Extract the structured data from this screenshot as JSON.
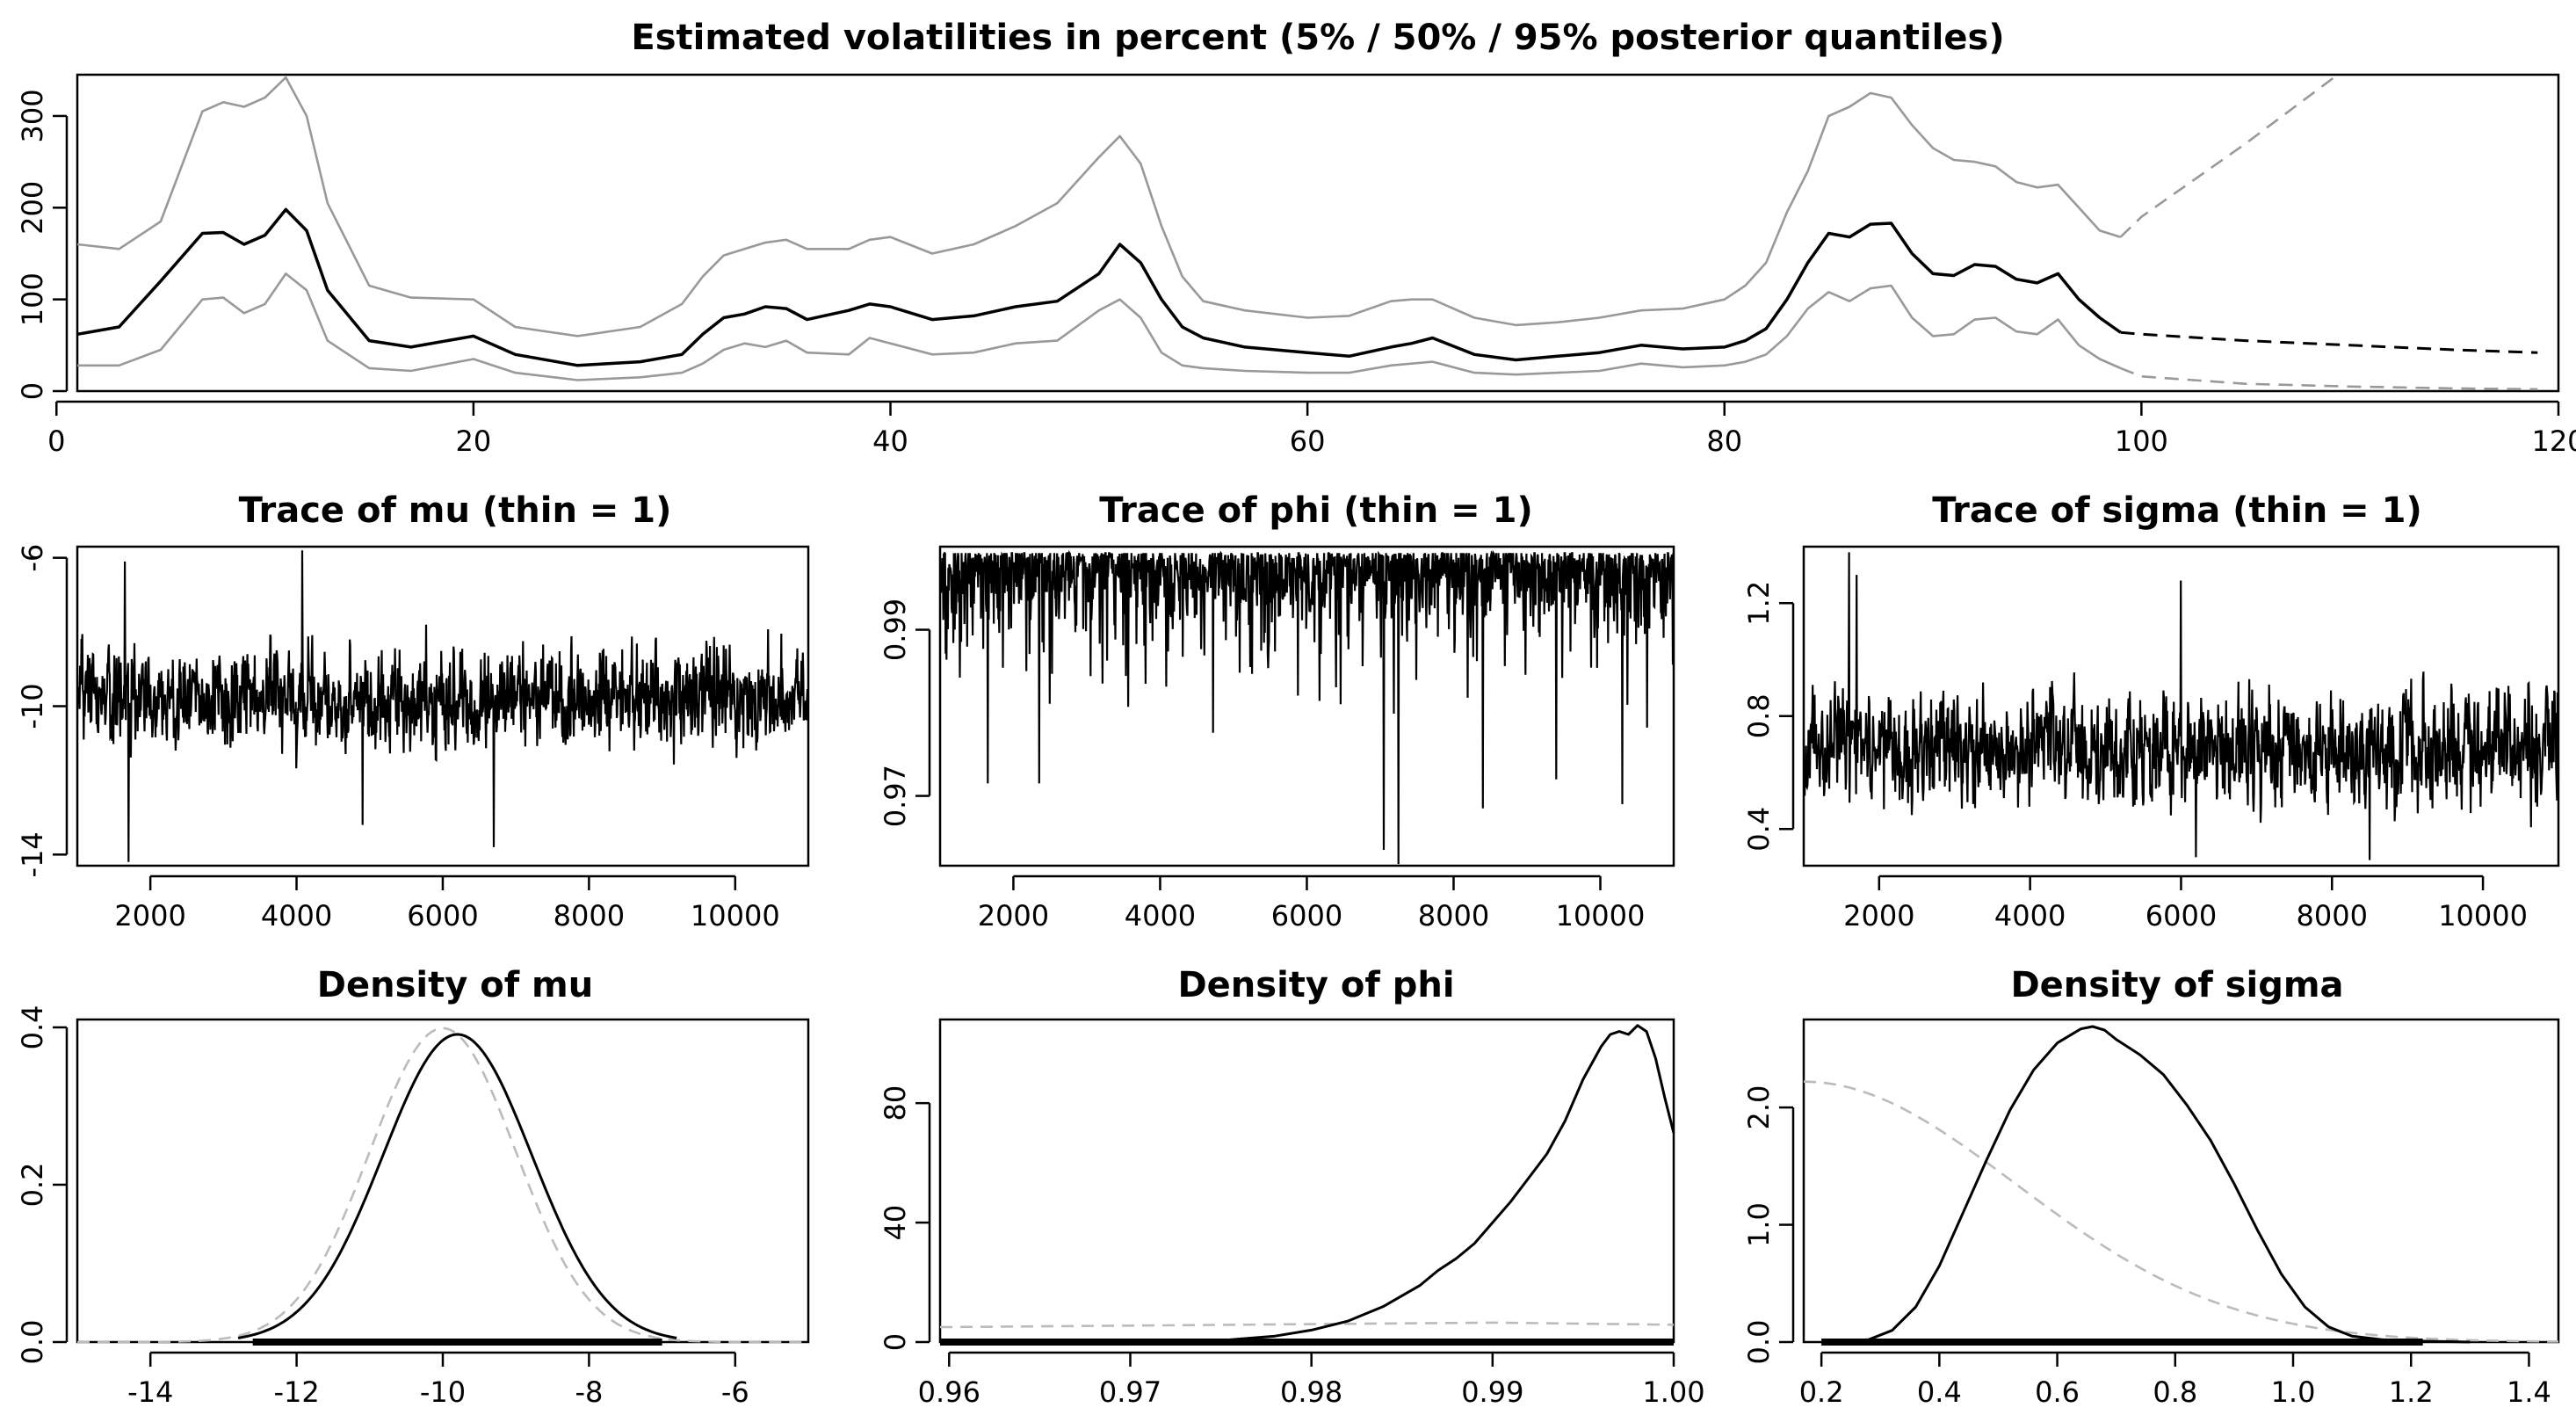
{
  "chart_data": [
    {
      "type": "line",
      "title": "Estimated volatilities in percent (5% / 50% / 95% posterior quantiles)",
      "xlabel": "",
      "ylabel": "",
      "xlim": [
        1,
        120
      ],
      "ylim": [
        0,
        345
      ],
      "xticks": [
        "0",
        "20",
        "40",
        "60",
        "80",
        "100",
        "120"
      ],
      "yticks": [
        "0",
        "100",
        "200",
        "300"
      ],
      "grid": false,
      "x": [
        1,
        3,
        5,
        7,
        8,
        9,
        10,
        11,
        12,
        13,
        15,
        17,
        20,
        22,
        25,
        28,
        30,
        31,
        32,
        33,
        34,
        35,
        36,
        38,
        39,
        40,
        42,
        44,
        46,
        48,
        50,
        51,
        52,
        53,
        54,
        55,
        57,
        60,
        62,
        64,
        65,
        66,
        68,
        70,
        72,
        74,
        76,
        78,
        80,
        81,
        82,
        83,
        84,
        85,
        86,
        87,
        88,
        89,
        90,
        91,
        92,
        93,
        94,
        95,
        96,
        97,
        98,
        99
      ],
      "series": [
        {
          "role": "median",
          "color": "#000000",
          "values": [
            62,
            70,
            120,
            172,
            173,
            160,
            170,
            198,
            175,
            110,
            55,
            48,
            60,
            40,
            28,
            32,
            40,
            62,
            80,
            84,
            92,
            90,
            78,
            88,
            95,
            92,
            78,
            82,
            92,
            98,
            128,
            160,
            140,
            100,
            70,
            58,
            48,
            42,
            38,
            48,
            52,
            58,
            40,
            34,
            38,
            42,
            50,
            46,
            48,
            55,
            68,
            100,
            140,
            172,
            168,
            182,
            183,
            150,
            128,
            126,
            138,
            136,
            122,
            118,
            128,
            100,
            80,
            64
          ]
        },
        {
          "role": "q95",
          "color": "#999999",
          "values": [
            160,
            155,
            185,
            305,
            315,
            310,
            320,
            342,
            300,
            205,
            115,
            102,
            100,
            70,
            60,
            70,
            95,
            125,
            148,
            155,
            162,
            165,
            155,
            155,
            165,
            168,
            150,
            160,
            180,
            205,
            255,
            278,
            248,
            180,
            125,
            98,
            88,
            80,
            82,
            98,
            100,
            100,
            80,
            72,
            75,
            80,
            88,
            90,
            100,
            115,
            140,
            195,
            240,
            300,
            310,
            325,
            320,
            290,
            265,
            252,
            250,
            245,
            228,
            222,
            225,
            200,
            175,
            168
          ]
        },
        {
          "role": "q5",
          "color": "#999999",
          "values": [
            28,
            28,
            45,
            100,
            102,
            85,
            95,
            128,
            110,
            55,
            25,
            22,
            35,
            20,
            12,
            15,
            20,
            30,
            45,
            52,
            48,
            55,
            42,
            40,
            58,
            52,
            40,
            42,
            52,
            55,
            88,
            100,
            80,
            42,
            28,
            25,
            22,
            20,
            20,
            28,
            30,
            32,
            20,
            18,
            20,
            22,
            30,
            26,
            28,
            32,
            40,
            60,
            90,
            108,
            98,
            112,
            115,
            80,
            60,
            62,
            78,
            80,
            65,
            62,
            78,
            50,
            35,
            25
          ]
        }
      ],
      "forecast": {
        "x": [
          99,
          100,
          105,
          110,
          115,
          119
        ],
        "median": [
          64,
          62,
          55,
          50,
          45,
          42
        ],
        "q95": [
          168,
          190,
          270,
          355,
          440,
          510
        ],
        "q5": [
          25,
          16,
          8,
          5,
          3,
          2
        ]
      }
    },
    {
      "type": "line",
      "title": "Trace of mu (thin = 1)",
      "xlim": [
        1001,
        11000
      ],
      "ylim": [
        -14.3,
        -5.7
      ],
      "xticks": [
        "2000",
        "4000",
        "6000",
        "8000",
        "10000"
      ],
      "yticks": [
        "-14",
        "-10",
        "-6"
      ],
      "n_draws": 10000,
      "center": -9.8,
      "spread": 0.95,
      "spikes": [
        [
          1700,
          -14.2
        ],
        [
          4080,
          -5.8
        ],
        [
          1650,
          -6.1
        ],
        [
          6700,
          -13.8
        ],
        [
          4900,
          -13.2
        ]
      ]
    },
    {
      "type": "line",
      "title": "Trace of phi (thin = 1)",
      "xlim": [
        1001,
        11000
      ],
      "ylim": [
        0.9616,
        1.0
      ],
      "xticks": [
        "2000",
        "4000",
        "6000",
        "8000",
        "10000"
      ],
      "yticks": [
        "0.97",
        "0.99"
      ],
      "n_draws": 10000,
      "center": 0.9955,
      "spread": 0.003,
      "spikes": [
        [
          7250,
          0.9618
        ],
        [
          7050,
          0.9635
        ],
        [
          1650,
          0.9715
        ],
        [
          2350,
          0.9715
        ],
        [
          10300,
          0.969
        ],
        [
          8400,
          0.9685
        ],
        [
          9400,
          0.972
        ]
      ]
    },
    {
      "type": "line",
      "title": "Trace of sigma (thin = 1)",
      "xlim": [
        1001,
        11000
      ],
      "ylim": [
        0.27,
        1.4
      ],
      "xticks": [
        "2000",
        "4000",
        "6000",
        "8000",
        "10000"
      ],
      "yticks": [
        "0.4",
        "0.8",
        "1.2"
      ],
      "n_draws": 10000,
      "center": 0.68,
      "spread": 0.14,
      "spikes": [
        [
          1600,
          1.38
        ],
        [
          1700,
          1.3
        ],
        [
          6000,
          1.28
        ],
        [
          6200,
          0.3
        ],
        [
          8500,
          0.29
        ]
      ]
    },
    {
      "type": "line",
      "title": "Density of mu",
      "xlim": [
        -15,
        -5
      ],
      "ylim": [
        0,
        0.41
      ],
      "xticks": [
        "-14",
        "-12",
        "-10",
        "-8",
        "-6"
      ],
      "yticks": [
        "0.0",
        "0.2",
        "0.4"
      ],
      "posterior": {
        "family": "normal",
        "mean": -9.8,
        "sd": 1.02
      },
      "prior": {
        "family": "normal",
        "mean": -10,
        "sd": 1.0
      },
      "rug": [
        -12.6,
        -7.0
      ]
    },
    {
      "type": "line",
      "title": "Density of phi",
      "xlim": [
        0.9595,
        1.0
      ],
      "ylim": [
        0,
        108
      ],
      "xticks": [
        "0.96",
        "0.97",
        "0.98",
        "0.99",
        "1.00"
      ],
      "yticks": [
        "0",
        "40",
        "80"
      ],
      "posterior": {
        "x": [
          0.9595,
          0.975,
          0.978,
          0.98,
          0.982,
          0.984,
          0.986,
          0.987,
          0.988,
          0.989,
          0.99,
          0.991,
          0.992,
          0.993,
          0.994,
          0.995,
          0.996,
          0.9965,
          0.997,
          0.9975,
          0.998,
          0.9985,
          0.999,
          0.9995,
          1.0
        ],
        "y": [
          0,
          0.5,
          2,
          4,
          7,
          12,
          19,
          24,
          28,
          33,
          40,
          47,
          55,
          63,
          74,
          88,
          99,
          103,
          104,
          103,
          106,
          104,
          95,
          82,
          70
        ]
      },
      "prior": {
        "x": [
          0.9595,
          0.97,
          0.98,
          0.99,
          1.0
        ],
        "y": [
          5,
          5.5,
          6,
          6.5,
          5.8
        ]
      },
      "rug": [
        0.9595,
        1.0
      ]
    },
    {
      "type": "line",
      "title": "Density of sigma",
      "xlim": [
        0.17,
        1.45
      ],
      "ylim": [
        0,
        2.75
      ],
      "xticks": [
        "0.2",
        "0.4",
        "0.6",
        "0.8",
        "1.0",
        "1.2",
        "1.4"
      ],
      "yticks": [
        "0.0",
        "1.0",
        "2.0"
      ],
      "posterior": {
        "x": [
          0.2,
          0.28,
          0.32,
          0.36,
          0.4,
          0.44,
          0.48,
          0.52,
          0.56,
          0.6,
          0.64,
          0.66,
          0.68,
          0.7,
          0.74,
          0.78,
          0.82,
          0.86,
          0.9,
          0.94,
          0.98,
          1.02,
          1.06,
          1.1,
          1.15,
          1.2,
          1.3
        ],
        "y": [
          0,
          0.02,
          0.1,
          0.3,
          0.65,
          1.1,
          1.55,
          1.98,
          2.32,
          2.55,
          2.67,
          2.69,
          2.66,
          2.58,
          2.45,
          2.28,
          2.02,
          1.72,
          1.35,
          0.95,
          0.58,
          0.3,
          0.13,
          0.05,
          0.02,
          0.01,
          0
        ]
      },
      "prior": {
        "family": "halfnormal",
        "peak": 2.22,
        "sd": 0.36
      },
      "rug": [
        0.2,
        1.22
      ]
    }
  ]
}
